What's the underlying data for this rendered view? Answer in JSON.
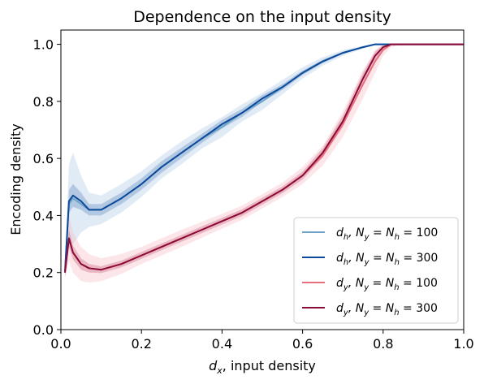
{
  "chart_data": {
    "type": "line",
    "title": "Dependence on the input density",
    "xlabel": "d_x, input density",
    "ylabel": "Encoding density",
    "xlim": [
      0.0,
      1.0
    ],
    "ylim": [
      0.0,
      1.05
    ],
    "xticks": [
      "0.0",
      "0.2",
      "0.4",
      "0.6",
      "0.8",
      "1.0"
    ],
    "yticks": [
      "0.0",
      "0.2",
      "0.4",
      "0.6",
      "0.8",
      "1.0"
    ],
    "grid": false,
    "legend_position": "lower-right",
    "x": [
      0.01,
      0.02,
      0.03,
      0.05,
      0.07,
      0.1,
      0.15,
      0.2,
      0.25,
      0.3,
      0.35,
      0.4,
      0.45,
      0.5,
      0.55,
      0.6,
      0.65,
      0.7,
      0.75,
      0.78,
      0.8,
      0.82,
      0.85,
      0.9,
      0.95,
      1.0
    ],
    "series": [
      {
        "name": "d_h, N_y = N_h = 100",
        "legend_main": "d",
        "legend_sub": "h",
        "legend_rest": ", N",
        "legend_sub2": "y",
        "legend_tail": " = N",
        "legend_sub3": "h",
        "legend_end": " = 100",
        "color": "#6fa3c8",
        "band_color": "#a9c6e3",
        "values": [
          0.2,
          0.44,
          0.46,
          0.44,
          0.42,
          0.42,
          0.46,
          0.51,
          0.57,
          0.62,
          0.67,
          0.71,
          0.76,
          0.8,
          0.85,
          0.9,
          0.94,
          0.97,
          0.99,
          1.0,
          1.0,
          1.0,
          1.0,
          1.0,
          1.0,
          1.0
        ],
        "band_width": [
          0.02,
          0.14,
          0.16,
          0.1,
          0.06,
          0.05,
          0.05,
          0.045,
          0.04,
          0.04,
          0.035,
          0.035,
          0.03,
          0.03,
          0.025,
          0.02,
          0.015,
          0.01,
          0.005,
          0.002,
          0.0,
          0.0,
          0.0,
          0.0,
          0.0,
          0.0
        ]
      },
      {
        "name": "d_h, N_y = N_h = 300",
        "legend_main": "d",
        "legend_sub": "h",
        "legend_rest": ", N",
        "legend_sub2": "y",
        "legend_tail": " = N",
        "legend_sub3": "h",
        "legend_end": " = 300",
        "color": "#0b4a9a",
        "band_color": "#5b87bf",
        "values": [
          0.2,
          0.45,
          0.47,
          0.45,
          0.42,
          0.42,
          0.46,
          0.51,
          0.57,
          0.62,
          0.67,
          0.72,
          0.76,
          0.81,
          0.85,
          0.9,
          0.94,
          0.97,
          0.99,
          1.0,
          1.0,
          1.0,
          1.0,
          1.0,
          1.0,
          1.0
        ],
        "band_width": [
          0.01,
          0.04,
          0.04,
          0.03,
          0.02,
          0.02,
          0.02,
          0.02,
          0.02,
          0.018,
          0.016,
          0.015,
          0.014,
          0.012,
          0.01,
          0.008,
          0.006,
          0.004,
          0.002,
          0.001,
          0.0,
          0.0,
          0.0,
          0.0,
          0.0,
          0.0
        ]
      },
      {
        "name": "d_y, N_y = N_h = 100",
        "legend_main": "d",
        "legend_sub": "y",
        "legend_rest": ", N",
        "legend_sub2": "y",
        "legend_tail": " = N",
        "legend_sub3": "h",
        "legend_end": " = 100",
        "color": "#e8707e",
        "band_color": "#f7b6c0",
        "values": [
          0.2,
          0.32,
          0.27,
          0.23,
          0.215,
          0.21,
          0.23,
          0.26,
          0.29,
          0.32,
          0.35,
          0.38,
          0.41,
          0.45,
          0.49,
          0.54,
          0.61,
          0.72,
          0.86,
          0.94,
          0.98,
          1.0,
          1.0,
          1.0,
          1.0,
          1.0
        ],
        "band_width": [
          0.02,
          0.08,
          0.07,
          0.06,
          0.05,
          0.04,
          0.035,
          0.03,
          0.03,
          0.03,
          0.028,
          0.026,
          0.025,
          0.025,
          0.025,
          0.03,
          0.035,
          0.045,
          0.05,
          0.04,
          0.02,
          0.01,
          0.0,
          0.0,
          0.0,
          0.0
        ]
      },
      {
        "name": "d_y, N_y = N_h = 300",
        "legend_main": "d",
        "legend_sub": "y",
        "legend_rest": ", N",
        "legend_sub2": "y",
        "legend_tail": " = N",
        "legend_sub3": "h",
        "legend_end": " = 300",
        "color": "#8a0a3a",
        "band_color": "#c8607e",
        "values": [
          0.2,
          0.32,
          0.27,
          0.23,
          0.215,
          0.21,
          0.23,
          0.26,
          0.29,
          0.32,
          0.35,
          0.38,
          0.41,
          0.45,
          0.49,
          0.54,
          0.62,
          0.73,
          0.88,
          0.96,
          0.99,
          1.0,
          1.0,
          1.0,
          1.0,
          1.0
        ],
        "band_width": [
          0.01,
          0.03,
          0.025,
          0.02,
          0.015,
          0.012,
          0.012,
          0.012,
          0.012,
          0.012,
          0.012,
          0.012,
          0.012,
          0.012,
          0.012,
          0.014,
          0.016,
          0.02,
          0.02,
          0.015,
          0.008,
          0.003,
          0.0,
          0.0,
          0.0,
          0.0
        ]
      }
    ]
  }
}
